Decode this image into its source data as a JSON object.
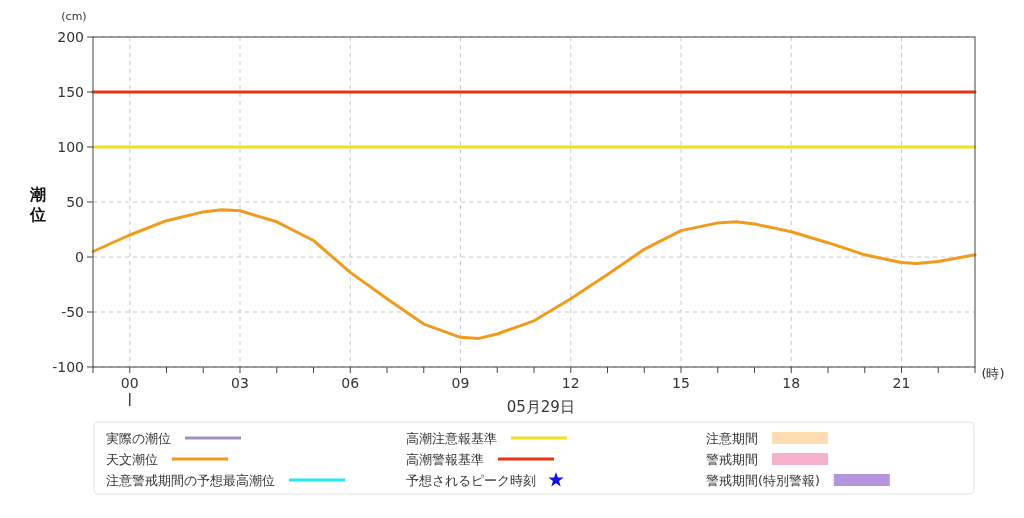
{
  "chart_data": {
    "type": "line",
    "ylabel": "潮位",
    "xlabel": "05月29日",
    "annotations": [
      "(cm)",
      "(時)"
    ],
    "xlim": [
      -1,
      23
    ],
    "ylim": [
      -100,
      200
    ],
    "xticks": [
      {
        "value": -1,
        "label": null
      },
      {
        "value": 0,
        "label": "00"
      },
      {
        "value": 1,
        "label": null
      },
      {
        "value": 2,
        "label": null
      },
      {
        "value": 3,
        "label": "03"
      },
      {
        "value": 4,
        "label": null
      },
      {
        "value": 5,
        "label": null
      },
      {
        "value": 6,
        "label": "06"
      },
      {
        "value": 7,
        "label": null
      },
      {
        "value": 8,
        "label": null
      },
      {
        "value": 9,
        "label": "09"
      },
      {
        "value": 10,
        "label": null
      },
      {
        "value": 11,
        "label": null
      },
      {
        "value": 12,
        "label": "12"
      },
      {
        "value": 13,
        "label": null
      },
      {
        "value": 14,
        "label": null
      },
      {
        "value": 15,
        "label": "15"
      },
      {
        "value": 16,
        "label": null
      },
      {
        "value": 17,
        "label": null
      },
      {
        "value": 18,
        "label": "18"
      },
      {
        "value": 19,
        "label": null
      },
      {
        "value": 20,
        "label": null
      },
      {
        "value": 21,
        "label": "21"
      },
      {
        "value": 22,
        "label": null
      },
      {
        "value": 23,
        "label": null
      }
    ],
    "yticks": [
      -100,
      -50,
      0,
      50,
      100,
      150,
      200
    ],
    "grid": true,
    "legend": "bottom",
    "line_style": "solid",
    "series": [
      {
        "name": "実際の潮位",
        "color": "#a38fbf"
      },
      {
        "name": "天文潮位",
        "color": "#f09a1e",
        "x": [
          -1,
          0,
          1,
          2,
          2.5,
          3,
          4,
          5,
          6,
          7,
          8,
          9,
          9.5,
          10,
          11,
          12,
          13,
          14,
          15,
          16,
          16.5,
          17,
          18,
          19,
          20,
          21,
          21.4,
          22,
          23
        ],
        "values": [
          5,
          20,
          33,
          41,
          43,
          42,
          32,
          15,
          -14,
          -38,
          -61,
          -73,
          -74,
          -70,
          -58,
          -38,
          -16,
          7,
          24,
          31,
          32,
          30,
          23,
          13,
          2,
          -5,
          -6,
          -4,
          2
        ]
      },
      {
        "name": "注意警戒期間の予想最高潮位",
        "color": "#22e6f0"
      },
      {
        "name": "高潮注意報基準",
        "color": "#f0e020",
        "x": [
          -1,
          23
        ],
        "values": [
          100,
          100
        ]
      },
      {
        "name": "高潮警報基準",
        "color": "#e83414",
        "x": [
          -1,
          23
        ],
        "values": [
          150,
          150
        ]
      },
      {
        "name": "予想されるピーク時刻",
        "type": "scatter",
        "marker": "star",
        "color": "#1010e0"
      },
      {
        "name": "注意期間",
        "type": "area",
        "color": "#fddcb0"
      },
      {
        "name": "警戒期間",
        "type": "area",
        "color": "#f7b0cc"
      },
      {
        "name": "警戒期間(特別警報)",
        "type": "area",
        "color": "#b494dc"
      }
    ]
  }
}
